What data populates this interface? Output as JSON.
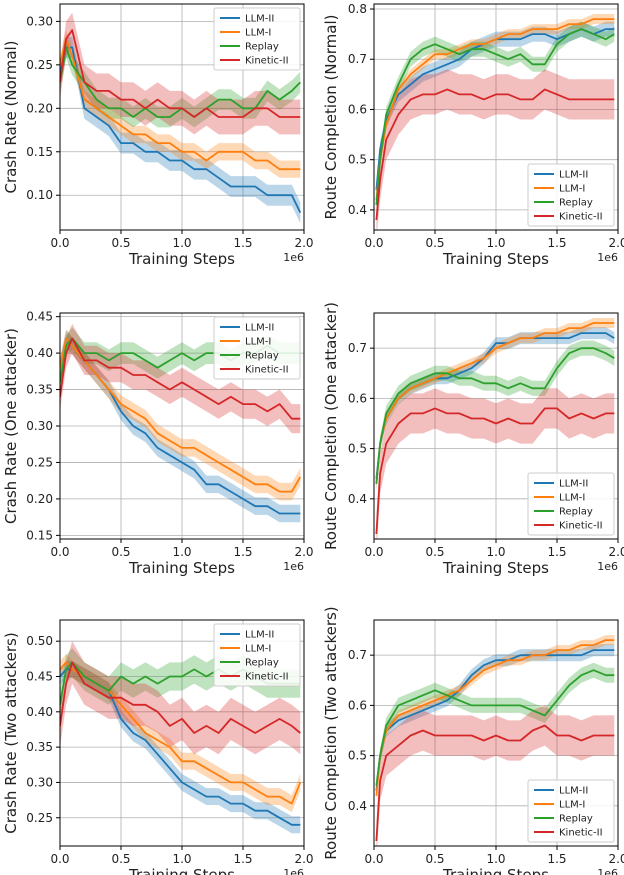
{
  "colors": {
    "LLM-II": "#1f77b4",
    "LLM-I": "#ff7f0e",
    "Replay": "#2ca02c",
    "Kinetic-II": "#d62728"
  },
  "chart_data": [
    {
      "type": "line",
      "ylabel": "Crash Rate (Normal)",
      "xlabel": "Training Steps",
      "xscale_label": "1e6",
      "xlim": [
        0,
        2.0
      ],
      "ylim": [
        0.06,
        0.32
      ],
      "xticks": [
        "0.0",
        "0.5",
        "1.0",
        "1.5",
        "2.0"
      ],
      "xtick_values": [
        0,
        0.5,
        1.0,
        1.5,
        2.0
      ],
      "yticks": [
        "0.10",
        "0.15",
        "0.20",
        "0.25",
        "0.30"
      ],
      "ytick_values": [
        0.1,
        0.15,
        0.2,
        0.25,
        0.3
      ],
      "grid": true,
      "legend": "top-right",
      "x": [
        0.0,
        0.05,
        0.1,
        0.2,
        0.3,
        0.4,
        0.5,
        0.6,
        0.7,
        0.8,
        0.9,
        1.0,
        1.1,
        1.2,
        1.3,
        1.4,
        1.5,
        1.6,
        1.7,
        1.8,
        1.9,
        1.97
      ],
      "series": [
        {
          "name": "LLM-II",
          "values": [
            0.24,
            0.27,
            0.27,
            0.2,
            0.19,
            0.18,
            0.16,
            0.16,
            0.15,
            0.15,
            0.14,
            0.14,
            0.13,
            0.13,
            0.12,
            0.11,
            0.11,
            0.11,
            0.1,
            0.1,
            0.1,
            0.08
          ],
          "band": 0.012
        },
        {
          "name": "LLM-I",
          "values": [
            0.25,
            0.28,
            0.26,
            0.21,
            0.2,
            0.19,
            0.18,
            0.17,
            0.17,
            0.16,
            0.16,
            0.15,
            0.15,
            0.14,
            0.15,
            0.15,
            0.15,
            0.14,
            0.14,
            0.13,
            0.13,
            0.13
          ],
          "band": 0.01
        },
        {
          "name": "Replay",
          "values": [
            0.23,
            0.27,
            0.25,
            0.23,
            0.21,
            0.2,
            0.2,
            0.19,
            0.2,
            0.19,
            0.19,
            0.2,
            0.19,
            0.2,
            0.21,
            0.21,
            0.2,
            0.2,
            0.22,
            0.21,
            0.22,
            0.23
          ],
          "band": 0.012
        },
        {
          "name": "Kinetic-II",
          "values": [
            0.23,
            0.28,
            0.29,
            0.23,
            0.22,
            0.22,
            0.21,
            0.21,
            0.2,
            0.21,
            0.2,
            0.2,
            0.19,
            0.2,
            0.19,
            0.19,
            0.19,
            0.2,
            0.2,
            0.19,
            0.19,
            0.19
          ],
          "band": 0.02
        }
      ]
    },
    {
      "type": "line",
      "ylabel": "Route Completion (Normal)",
      "xlabel": "Training Steps",
      "xscale_label": "1e6",
      "xlim": [
        0,
        2.0
      ],
      "ylim": [
        0.36,
        0.81
      ],
      "xticks": [
        "0.0",
        "0.5",
        "1.0",
        "1.5",
        "2.0"
      ],
      "xtick_values": [
        0,
        0.5,
        1.0,
        1.5,
        2.0
      ],
      "yticks": [
        "0.4",
        "0.5",
        "0.6",
        "0.7",
        "0.8"
      ],
      "ytick_values": [
        0.4,
        0.5,
        0.6,
        0.7,
        0.8
      ],
      "grid": true,
      "legend": "bottom-right",
      "x": [
        0.02,
        0.05,
        0.1,
        0.2,
        0.3,
        0.4,
        0.5,
        0.6,
        0.7,
        0.8,
        0.9,
        1.0,
        1.1,
        1.2,
        1.3,
        1.4,
        1.5,
        1.6,
        1.7,
        1.8,
        1.9,
        1.97
      ],
      "series": [
        {
          "name": "LLM-II",
          "values": [
            0.44,
            0.52,
            0.58,
            0.63,
            0.65,
            0.67,
            0.68,
            0.69,
            0.7,
            0.72,
            0.73,
            0.74,
            0.74,
            0.74,
            0.75,
            0.75,
            0.74,
            0.75,
            0.76,
            0.75,
            0.76,
            0.76
          ],
          "band": 0.015
        },
        {
          "name": "LLM-I",
          "values": [
            0.42,
            0.5,
            0.57,
            0.64,
            0.67,
            0.69,
            0.71,
            0.71,
            0.72,
            0.73,
            0.73,
            0.74,
            0.75,
            0.75,
            0.76,
            0.76,
            0.76,
            0.77,
            0.77,
            0.78,
            0.78,
            0.78
          ],
          "band": 0.01
        },
        {
          "name": "Replay",
          "values": [
            0.41,
            0.5,
            0.59,
            0.65,
            0.7,
            0.72,
            0.73,
            0.72,
            0.71,
            0.72,
            0.72,
            0.71,
            0.7,
            0.71,
            0.69,
            0.69,
            0.73,
            0.75,
            0.76,
            0.75,
            0.74,
            0.75
          ],
          "band": 0.015
        },
        {
          "name": "Kinetic-II",
          "values": [
            0.38,
            0.46,
            0.54,
            0.59,
            0.62,
            0.63,
            0.63,
            0.64,
            0.63,
            0.63,
            0.62,
            0.63,
            0.63,
            0.62,
            0.62,
            0.64,
            0.63,
            0.62,
            0.62,
            0.62,
            0.62,
            0.62
          ],
          "band": 0.04
        }
      ]
    },
    {
      "type": "line",
      "ylabel": "Crash Rate (One attacker)",
      "xlabel": "Training Steps",
      "xscale_label": "1e6",
      "xlim": [
        0,
        2.0
      ],
      "ylim": [
        0.145,
        0.455
      ],
      "xticks": [
        "0.0",
        "0.5",
        "1.0",
        "1.5",
        "2.0"
      ],
      "xtick_values": [
        0,
        0.5,
        1.0,
        1.5,
        2.0
      ],
      "yticks": [
        "0.15",
        "0.20",
        "0.25",
        "0.30",
        "0.35",
        "0.40",
        "0.45"
      ],
      "ytick_values": [
        0.15,
        0.2,
        0.25,
        0.3,
        0.35,
        0.4,
        0.45
      ],
      "grid": true,
      "legend": "top-right",
      "x": [
        0.0,
        0.05,
        0.1,
        0.2,
        0.3,
        0.4,
        0.5,
        0.6,
        0.7,
        0.8,
        0.9,
        1.0,
        1.1,
        1.2,
        1.3,
        1.4,
        1.5,
        1.6,
        1.7,
        1.8,
        1.9,
        1.97
      ],
      "series": [
        {
          "name": "LLM-II",
          "values": [
            0.38,
            0.42,
            0.41,
            0.39,
            0.37,
            0.35,
            0.32,
            0.3,
            0.29,
            0.27,
            0.26,
            0.25,
            0.24,
            0.22,
            0.22,
            0.21,
            0.2,
            0.19,
            0.19,
            0.18,
            0.18,
            0.18
          ],
          "band": 0.012
        },
        {
          "name": "LLM-I",
          "values": [
            0.38,
            0.42,
            0.41,
            0.39,
            0.37,
            0.35,
            0.33,
            0.32,
            0.31,
            0.29,
            0.28,
            0.27,
            0.27,
            0.26,
            0.25,
            0.24,
            0.23,
            0.22,
            0.22,
            0.21,
            0.21,
            0.23
          ],
          "band": 0.012
        },
        {
          "name": "Replay",
          "values": [
            0.36,
            0.41,
            0.42,
            0.4,
            0.4,
            0.39,
            0.4,
            0.4,
            0.39,
            0.38,
            0.39,
            0.4,
            0.39,
            0.4,
            0.4,
            0.39,
            0.4,
            0.4,
            0.41,
            0.4,
            0.4,
            0.4
          ],
          "band": 0.015
        },
        {
          "name": "Kinetic-II",
          "values": [
            0.34,
            0.4,
            0.42,
            0.39,
            0.39,
            0.38,
            0.38,
            0.37,
            0.37,
            0.36,
            0.35,
            0.36,
            0.35,
            0.34,
            0.33,
            0.34,
            0.33,
            0.33,
            0.32,
            0.33,
            0.31,
            0.31
          ],
          "band": 0.02
        }
      ]
    },
    {
      "type": "line",
      "ylabel": "Route Completion (One attacker)",
      "xlabel": "Training Steps",
      "xscale_label": "1e6",
      "xlim": [
        0,
        2.0
      ],
      "ylim": [
        0.32,
        0.77
      ],
      "xticks": [
        "0.0",
        "0.5",
        "1.0",
        "1.5",
        "2.0"
      ],
      "xtick_values": [
        0,
        0.5,
        1.0,
        1.5,
        2.0
      ],
      "yticks": [
        "0.4",
        "0.5",
        "0.6",
        "0.7"
      ],
      "ytick_values": [
        0.4,
        0.5,
        0.6,
        0.7
      ],
      "grid": true,
      "legend": "bottom-right",
      "x": [
        0.02,
        0.05,
        0.1,
        0.2,
        0.3,
        0.4,
        0.5,
        0.6,
        0.7,
        0.8,
        0.9,
        1.0,
        1.1,
        1.2,
        1.3,
        1.4,
        1.5,
        1.6,
        1.7,
        1.8,
        1.9,
        1.97
      ],
      "series": [
        {
          "name": "LLM-II",
          "values": [
            0.44,
            0.51,
            0.56,
            0.6,
            0.62,
            0.63,
            0.64,
            0.64,
            0.65,
            0.66,
            0.68,
            0.71,
            0.71,
            0.72,
            0.72,
            0.72,
            0.72,
            0.72,
            0.73,
            0.73,
            0.73,
            0.72
          ],
          "band": 0.012
        },
        {
          "name": "LLM-I",
          "values": [
            0.43,
            0.51,
            0.56,
            0.6,
            0.62,
            0.63,
            0.64,
            0.65,
            0.66,
            0.67,
            0.68,
            0.7,
            0.71,
            0.72,
            0.72,
            0.73,
            0.73,
            0.74,
            0.74,
            0.75,
            0.75,
            0.75
          ],
          "band": 0.01
        },
        {
          "name": "Replay",
          "values": [
            0.43,
            0.51,
            0.57,
            0.61,
            0.63,
            0.64,
            0.65,
            0.65,
            0.64,
            0.64,
            0.63,
            0.63,
            0.62,
            0.63,
            0.62,
            0.62,
            0.66,
            0.69,
            0.7,
            0.7,
            0.69,
            0.68
          ],
          "band": 0.015
        },
        {
          "name": "Kinetic-II",
          "values": [
            0.33,
            0.45,
            0.51,
            0.55,
            0.57,
            0.57,
            0.58,
            0.57,
            0.57,
            0.56,
            0.56,
            0.55,
            0.56,
            0.55,
            0.55,
            0.58,
            0.58,
            0.56,
            0.57,
            0.56,
            0.57,
            0.57
          ],
          "band": 0.04
        }
      ]
    },
    {
      "type": "line",
      "ylabel": "Crash Rate (Two attackers)",
      "xlabel": "Training Steps",
      "xscale_label": "1e6",
      "xlim": [
        0,
        2.0
      ],
      "ylim": [
        0.21,
        0.53
      ],
      "xticks": [
        "0.0",
        "0.5",
        "1.0",
        "1.5",
        "2.0"
      ],
      "xtick_values": [
        0,
        0.5,
        1.0,
        1.5,
        2.0
      ],
      "yticks": [
        "0.25",
        "0.30",
        "0.35",
        "0.40",
        "0.45",
        "0.50"
      ],
      "ytick_values": [
        0.25,
        0.3,
        0.35,
        0.4,
        0.45,
        0.5
      ],
      "grid": true,
      "legend": "top-right",
      "x": [
        0.0,
        0.05,
        0.1,
        0.2,
        0.3,
        0.4,
        0.5,
        0.6,
        0.7,
        0.8,
        0.9,
        1.0,
        1.1,
        1.2,
        1.3,
        1.4,
        1.5,
        1.6,
        1.7,
        1.8,
        1.9,
        1.97
      ],
      "series": [
        {
          "name": "LLM-II",
          "values": [
            0.45,
            0.46,
            0.46,
            0.45,
            0.44,
            0.43,
            0.39,
            0.37,
            0.36,
            0.34,
            0.32,
            0.3,
            0.29,
            0.28,
            0.28,
            0.27,
            0.27,
            0.26,
            0.26,
            0.25,
            0.24,
            0.24
          ],
          "band": 0.012
        },
        {
          "name": "LLM-I",
          "values": [
            0.46,
            0.47,
            0.46,
            0.45,
            0.44,
            0.43,
            0.41,
            0.39,
            0.37,
            0.36,
            0.35,
            0.33,
            0.33,
            0.32,
            0.31,
            0.3,
            0.3,
            0.29,
            0.28,
            0.28,
            0.27,
            0.3
          ],
          "band": 0.012
        },
        {
          "name": "Replay",
          "values": [
            0.41,
            0.46,
            0.47,
            0.45,
            0.44,
            0.43,
            0.45,
            0.44,
            0.45,
            0.44,
            0.45,
            0.45,
            0.46,
            0.45,
            0.46,
            0.45,
            0.46,
            0.45,
            0.44,
            0.44,
            0.44,
            0.44
          ],
          "band": 0.02
        },
        {
          "name": "Kinetic-II",
          "values": [
            0.38,
            0.44,
            0.47,
            0.44,
            0.43,
            0.42,
            0.42,
            0.41,
            0.41,
            0.4,
            0.38,
            0.39,
            0.37,
            0.38,
            0.37,
            0.39,
            0.38,
            0.37,
            0.38,
            0.39,
            0.38,
            0.37
          ],
          "band": 0.03
        }
      ]
    },
    {
      "type": "line",
      "ylabel": "Route Completion (Two attackers)",
      "xlabel": "Training Steps",
      "xscale_label": "1e6",
      "xlim": [
        0,
        2.0
      ],
      "ylim": [
        0.32,
        0.77
      ],
      "xticks": [
        "0.0",
        "0.5",
        "1.0",
        "1.5",
        "2.0"
      ],
      "xtick_values": [
        0,
        0.5,
        1.0,
        1.5,
        2.0
      ],
      "yticks": [
        "0.4",
        "0.5",
        "0.6",
        "0.7"
      ],
      "ytick_values": [
        0.4,
        0.5,
        0.6,
        0.7
      ],
      "grid": true,
      "legend": "bottom-right",
      "x": [
        0.02,
        0.05,
        0.1,
        0.2,
        0.3,
        0.4,
        0.5,
        0.6,
        0.7,
        0.8,
        0.9,
        1.0,
        1.1,
        1.2,
        1.3,
        1.4,
        1.5,
        1.6,
        1.7,
        1.8,
        1.9,
        1.97
      ],
      "series": [
        {
          "name": "LLM-II",
          "values": [
            0.43,
            0.5,
            0.55,
            0.57,
            0.58,
            0.59,
            0.6,
            0.61,
            0.63,
            0.66,
            0.68,
            0.69,
            0.69,
            0.7,
            0.7,
            0.7,
            0.7,
            0.7,
            0.7,
            0.71,
            0.71,
            0.71
          ],
          "band": 0.012
        },
        {
          "name": "LLM-I",
          "values": [
            0.42,
            0.5,
            0.55,
            0.58,
            0.59,
            0.6,
            0.61,
            0.62,
            0.63,
            0.65,
            0.67,
            0.68,
            0.69,
            0.69,
            0.7,
            0.7,
            0.71,
            0.71,
            0.72,
            0.72,
            0.73,
            0.73
          ],
          "band": 0.01
        },
        {
          "name": "Replay",
          "values": [
            0.44,
            0.5,
            0.56,
            0.6,
            0.61,
            0.62,
            0.63,
            0.62,
            0.61,
            0.6,
            0.6,
            0.6,
            0.6,
            0.6,
            0.59,
            0.58,
            0.61,
            0.64,
            0.66,
            0.67,
            0.66,
            0.66
          ],
          "band": 0.015
        },
        {
          "name": "Kinetic-II",
          "values": [
            0.33,
            0.45,
            0.5,
            0.52,
            0.54,
            0.55,
            0.54,
            0.54,
            0.54,
            0.54,
            0.53,
            0.54,
            0.53,
            0.53,
            0.55,
            0.56,
            0.54,
            0.54,
            0.53,
            0.54,
            0.54,
            0.54
          ],
          "band": 0.04
        }
      ]
    }
  ]
}
